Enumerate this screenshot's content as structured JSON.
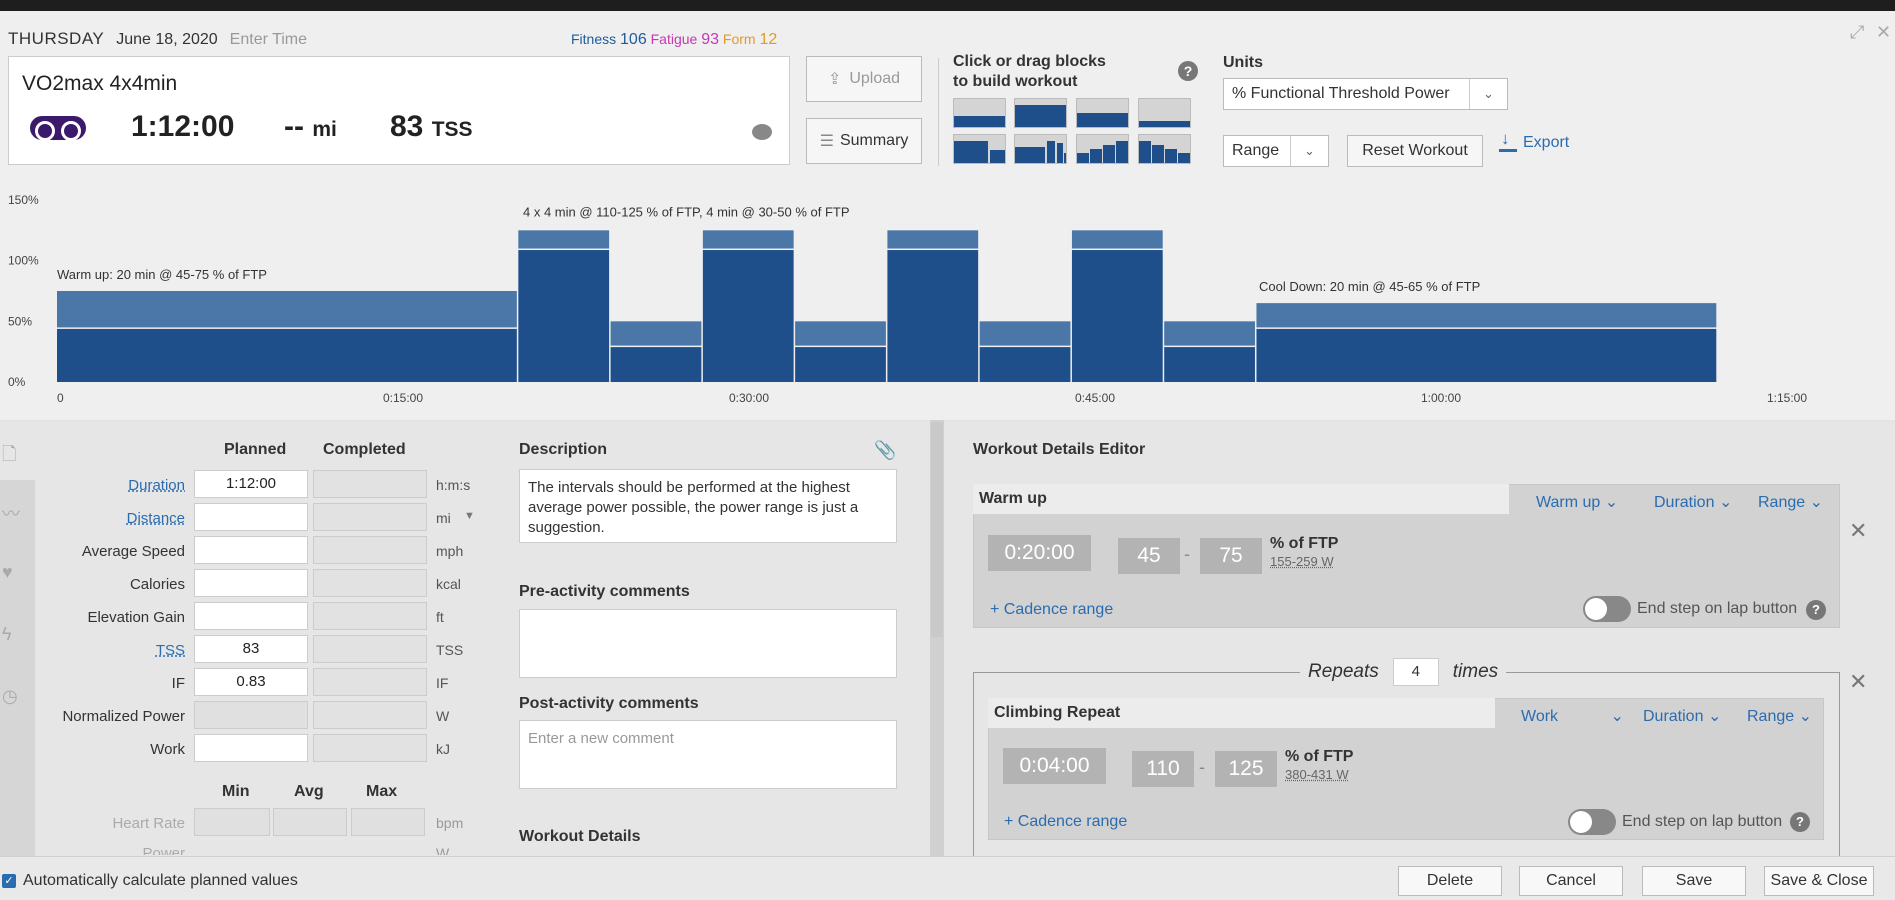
{
  "header": {
    "day": "THURSDAY",
    "date": "June 18, 2020",
    "time_placeholder": "Enter Time",
    "fitness_label": "Fitness",
    "fitness_value": "106",
    "fatigue_label": "Fatigue",
    "fatigue_value": "93",
    "form_label": "Form",
    "form_value": "12"
  },
  "workout": {
    "title": "VO2max 4x4min",
    "duration": "1:12:00",
    "distance": "--",
    "distance_unit": "mi",
    "tss": "83",
    "tss_unit": "TSS"
  },
  "buttons": {
    "upload": "Upload",
    "summary": "Summary",
    "reset": "Reset Workout",
    "export": "Export"
  },
  "builder": {
    "line1": "Click or drag blocks",
    "line2": "to build workout"
  },
  "units": {
    "label": "Units",
    "selected": "% Functional Threshold Power",
    "range_selected": "Range"
  },
  "chart_data": {
    "type": "bar",
    "y_ticks": [
      "150%",
      "100%",
      "50%",
      "0%"
    ],
    "ylim": [
      0,
      150
    ],
    "x_ticks": [
      "0",
      "0:15:00",
      "0:30:00",
      "0:45:00",
      "1:00:00",
      "1:15:00"
    ],
    "xlim_min": [
      0,
      75
    ],
    "annotations": [
      "Warm up: 20 min @ 45-75 % of FTP",
      "4 x 4 min @ 110-125 % of FTP, 4 min @ 30-50 % of FTP",
      "Cool Down: 20 min @ 45-65 % of FTP"
    ],
    "steps": [
      {
        "start_min": 0,
        "duration_min": 20,
        "low_pct": 45,
        "high_pct": 75
      },
      {
        "start_min": 20,
        "duration_min": 4,
        "low_pct": 110,
        "high_pct": 125
      },
      {
        "start_min": 24,
        "duration_min": 4,
        "low_pct": 30,
        "high_pct": 50
      },
      {
        "start_min": 28,
        "duration_min": 4,
        "low_pct": 110,
        "high_pct": 125
      },
      {
        "start_min": 32,
        "duration_min": 4,
        "low_pct": 30,
        "high_pct": 50
      },
      {
        "start_min": 36,
        "duration_min": 4,
        "low_pct": 110,
        "high_pct": 125
      },
      {
        "start_min": 40,
        "duration_min": 4,
        "low_pct": 30,
        "high_pct": 50
      },
      {
        "start_min": 44,
        "duration_min": 4,
        "low_pct": 110,
        "high_pct": 125
      },
      {
        "start_min": 48,
        "duration_min": 4,
        "low_pct": 30,
        "high_pct": 50
      },
      {
        "start_min": 52,
        "duration_min": 20,
        "low_pct": 45,
        "high_pct": 65
      }
    ],
    "colors": {
      "low": "#1f4f8a",
      "range": "#4a76a8"
    }
  },
  "form": {
    "col_planned": "Planned",
    "col_completed": "Completed",
    "rows": [
      {
        "label": "Duration",
        "planned": "1:12:00",
        "unit": "h:m:s"
      },
      {
        "label": "Distance",
        "planned": "",
        "unit": "mi"
      },
      {
        "label": "Average Speed",
        "planned": "",
        "unit": "mph"
      },
      {
        "label": "Calories",
        "planned": "",
        "unit": "kcal"
      },
      {
        "label": "Elevation Gain",
        "planned": "",
        "unit": "ft"
      },
      {
        "label": "TSS",
        "planned": "83",
        "unit": "TSS"
      },
      {
        "label": "IF",
        "planned": "0.83",
        "unit": "IF"
      },
      {
        "label": "Normalized Power",
        "planned": "",
        "unit": "W"
      },
      {
        "label": "Work",
        "planned": "",
        "unit": "kJ"
      }
    ],
    "mma_min": "Min",
    "mma_avg": "Avg",
    "mma_max": "Max",
    "hr_label": "Heart Rate",
    "hr_unit": "bpm",
    "power_label": "Power",
    "power_unit": "W"
  },
  "description": {
    "label": "Description",
    "text": "The intervals should be performed at the highest average power possible, the power range is just a suggestion.",
    "pre_label": "Pre-activity comments",
    "post_label": "Post-activity comments",
    "post_placeholder": "Enter a new comment",
    "details_label": "Workout Details"
  },
  "editor": {
    "title": "Workout Details Editor",
    "warmup": {
      "name": "Warm up",
      "type": "Warm up",
      "dur_type": "Duration",
      "target_type": "Range",
      "time": "0:20:00",
      "low": "45",
      "high": "75",
      "unit": "% of FTP",
      "watts": "155-259 W",
      "cadence": "Cadence range",
      "end_lap": "End step on lap button"
    },
    "repeats_label": "Repeats",
    "repeats_count": "4",
    "times_label": "times",
    "climb": {
      "name": "Climbing Repeat",
      "type": "Work",
      "dur_type": "Duration",
      "target_type": "Range",
      "time": "0:04:00",
      "low": "110",
      "high": "125",
      "unit": "% of FTP",
      "watts": "380-431 W",
      "cadence": "Cadence range",
      "end_lap": "End step on lap button"
    }
  },
  "footer": {
    "auto_calc": "Automatically calculate planned values",
    "delete": "Delete",
    "cancel": "Cancel",
    "save": "Save",
    "save_close": "Save & Close"
  }
}
